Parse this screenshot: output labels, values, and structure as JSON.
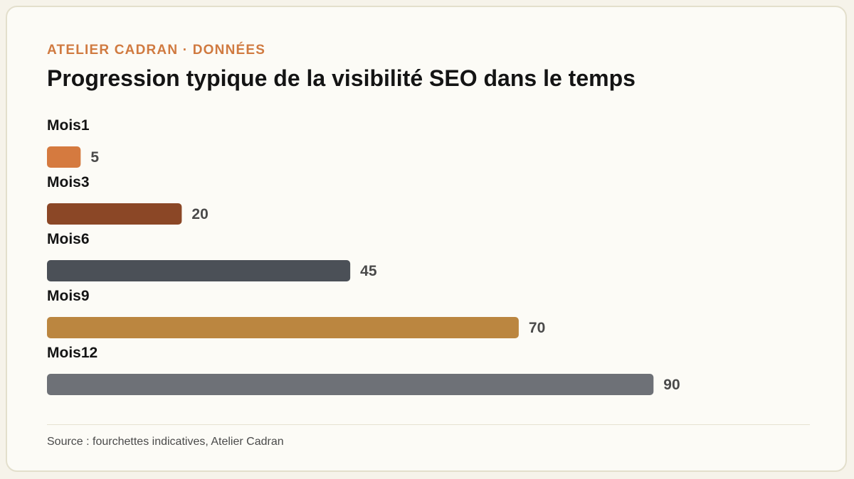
{
  "header": {
    "eyebrow": "ATELIER CADRAN · DONNÉES",
    "title": "Progression typique de la visibilité SEO dans le temps"
  },
  "footer": {
    "source": "Source : fourchettes indicatives, Atelier Cadran"
  },
  "chart_data": {
    "type": "bar",
    "orientation": "horizontal",
    "title": "Progression typique de la visibilité SEO dans le temps",
    "categories": [
      "Mois1",
      "Mois3",
      "Mois6",
      "Mois9",
      "Mois12"
    ],
    "values": [
      5,
      20,
      45,
      70,
      90
    ],
    "colors": [
      "#d57a3f",
      "#8b4726",
      "#4b5057",
      "#bb8640",
      "#6e7177"
    ],
    "xlim": [
      0,
      100
    ],
    "grid": false,
    "legend": "none",
    "xlabel": "",
    "ylabel": ""
  }
}
